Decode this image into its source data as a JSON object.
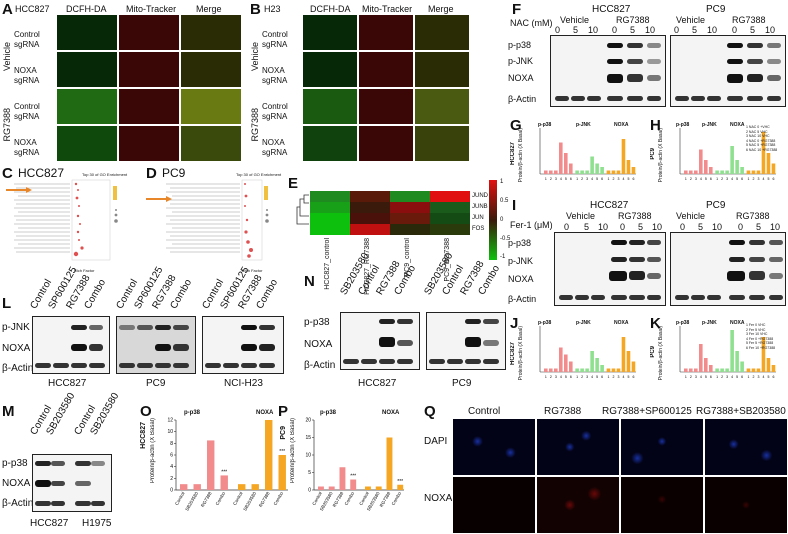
{
  "panel_letters": {
    "a": "A",
    "b": "B",
    "c": "C",
    "d": "D",
    "e": "E",
    "f": "F",
    "g": "G",
    "h": "H",
    "i": "I",
    "j": "J",
    "k": "K",
    "l": "L",
    "m": "M",
    "n": "N",
    "o": "O",
    "p": "P",
    "q": "Q"
  },
  "a": {
    "cell_line": "HCC827",
    "cols": [
      "DCFH-DA",
      "Mito-Tracker",
      "Merge"
    ],
    "treat": [
      "Vehicle",
      "RG7388"
    ],
    "rows": [
      "Control sgRNA",
      "NOXA sgRNA",
      "Control sgRNA",
      "NOXA sgRNA"
    ]
  },
  "b": {
    "cell_line": "H23",
    "cols": [
      "DCFH-DA",
      "Mito-Tracker",
      "Merge"
    ],
    "treat": [
      "Vehicle",
      "RG7388"
    ],
    "rows": [
      "Control sgRNA",
      "NOXA sgRNA",
      "Control sgRNA",
      "NOXA sgRNA"
    ]
  },
  "c": {
    "title": "HCC827",
    "go_title": "Top 30 of GO Enrichment",
    "xlab": "Rich Factor"
  },
  "d": {
    "title": "PC9",
    "go_title": "Top 30 of GO Enrichment",
    "xlab": "Rich Factor"
  },
  "e": {
    "genes": [
      "JUND",
      "JUNB",
      "JUN",
      "FOS"
    ],
    "samples": [
      "HCC827_control",
      "HCC827_RG7388",
      "PC9_control",
      "PC9_RG7388"
    ],
    "scale": [
      "1",
      "0.5",
      "0",
      "-0.5",
      "-1"
    ]
  },
  "f": {
    "treat_label": "NAC (mM)",
    "lines": [
      "HCC827",
      "PC9"
    ],
    "groups": [
      "Vehicle",
      "RG7388",
      "Vehicle",
      "RG7388"
    ],
    "doses": [
      "0",
      "5",
      "10",
      "0",
      "5",
      "10",
      "0",
      "5",
      "10",
      "0",
      "5",
      "10"
    ],
    "rows": [
      "p-p38",
      "p-JNK",
      "NOXA",
      "β-Actin"
    ]
  },
  "g": {
    "ylab": "Protein/β-actin (X Basal)",
    "cell": "HCC827",
    "groups": [
      "p-p38",
      "p-JNK",
      "NOXA"
    ],
    "ticks": [
      "1",
      "2",
      "3",
      "4",
      "5",
      "6"
    ]
  },
  "h": {
    "ylab": "Protein/β-actin (X Basal)",
    "cell": "PC9",
    "groups": [
      "p-p38",
      "p-JNK",
      "NOXA"
    ],
    "ticks": [
      "1",
      "2",
      "3",
      "4",
      "5",
      "6"
    ],
    "legend": [
      "1 NAC 0 +VHC",
      "2 NAC 5 VHC",
      "3 NAC 10 VHC",
      "4 NAC 0 +RG7388",
      "5 NAC 5 +RG7388",
      "6 NAC 10 +RG7388"
    ]
  },
  "i": {
    "treat_label": "Fer-1 (μM)",
    "lines": [
      "HCC827",
      "PC9"
    ],
    "groups": [
      "Vehicle",
      "RG7388",
      "Vehicle",
      "RG7388"
    ],
    "doses": [
      "0",
      "5",
      "10",
      "0",
      "5",
      "10",
      "0",
      "5",
      "10",
      "0",
      "5",
      "10"
    ],
    "rows": [
      "p-p38",
      "p-JNK",
      "NOXA",
      "β-Actin"
    ]
  },
  "j": {
    "ylab": "Protein/β-actin (X Basal)",
    "cell": "HCC827",
    "groups": [
      "p-p38",
      "p-JNK",
      "NOXA"
    ],
    "ticks": [
      "1",
      "2",
      "3",
      "4",
      "5",
      "6"
    ]
  },
  "k": {
    "ylab": "Protein/β-actin (X Basal)",
    "cell": "PC9",
    "groups": [
      "p-p38",
      "p-JNK",
      "NOXA"
    ],
    "ticks": [
      "1",
      "2",
      "3",
      "4",
      "5",
      "6"
    ],
    "legend": [
      "1 Fer 0 VHC",
      "2 Fer 5 VHC",
      "3 Fer 10 VHC",
      "4 Fer 0 +RG7388",
      "5 Fer 5 +RG7388",
      "6 Fer 10 +RG7388"
    ]
  },
  "l": {
    "lanes": [
      "Control",
      "SP600125",
      "RG7388",
      "Combo",
      "Control",
      "SP600125",
      "RG7388",
      "Combo",
      "Control",
      "SP600125",
      "RG7388",
      "Combo"
    ],
    "rows": [
      "p-JNK",
      "NOXA",
      "β-Actin"
    ],
    "lines": [
      "HCC827",
      "PC9",
      "NCI-H23"
    ]
  },
  "m": {
    "lanes": [
      "Control",
      "SB203580",
      "Control",
      "SB203580"
    ],
    "rows": [
      "p-p38",
      "NOXA",
      "β-Actin"
    ],
    "lines": [
      "HCC827",
      "H1975"
    ]
  },
  "n": {
    "lanes": [
      "SB203580",
      "Control",
      "RG7388",
      "Combo",
      "SB203580",
      "Control",
      "RG7388",
      "Combo"
    ],
    "rows": [
      "p-p38",
      "NOXA",
      "β-Actin"
    ],
    "lines": [
      "HCC827",
      "PC9"
    ]
  },
  "o": {
    "ylab": "Protein/β-actin (X Basal)",
    "cell": "HCC827",
    "groups": [
      "p-p38",
      "NOXA"
    ],
    "cats": [
      "Control",
      "SB203580",
      "RG7388",
      "Combo",
      "Control",
      "SB203580",
      "RG7388",
      "Combo"
    ],
    "yticks": [
      "0",
      "2",
      "4",
      "6",
      "8",
      "10",
      "12"
    ],
    "sig": "***"
  },
  "p": {
    "ylab": "Protein/β-actin (X Basal)",
    "cell": "PC9",
    "groups": [
      "p-p38",
      "NOXA"
    ],
    "cats": [
      "Control",
      "SB203580",
      "RG7388",
      "Combo",
      "Control",
      "SB203580",
      "RG7388",
      "Combo"
    ],
    "yticks": [
      "0",
      "5",
      "10",
      "15",
      "20"
    ],
    "sig": "***"
  },
  "q": {
    "cols": [
      "Control",
      "RG7388",
      "RG7388+SP600125",
      "RG7388+SB203580"
    ],
    "rows": [
      "DAPI",
      "NOXA"
    ]
  },
  "chart_data": [
    {
      "panel": "O",
      "type": "bar",
      "categories": [
        "Control",
        "SB203580",
        "RG7388",
        "Combo",
        "Control",
        "SB203580",
        "RG7388",
        "Combo"
      ],
      "values": [
        1,
        1,
        8.5,
        2.5,
        1,
        1,
        12,
        6
      ],
      "ylim": [
        0,
        12
      ],
      "colors": [
        "#f28c8c",
        "#f28c8c",
        "#f28c8c",
        "#f28c8c",
        "#f5a623",
        "#f5a623",
        "#f5a623",
        "#f5a623"
      ]
    },
    {
      "panel": "P",
      "type": "bar",
      "categories": [
        "Control",
        "SB203580",
        "RG7388",
        "Combo",
        "Control",
        "SB203580",
        "RG7388",
        "Combo"
      ],
      "values": [
        1,
        1,
        6.5,
        3,
        1,
        1,
        15,
        1.5
      ],
      "ylim": [
        0,
        20
      ],
      "colors": [
        "#f28c8c",
        "#f28c8c",
        "#f28c8c",
        "#f28c8c",
        "#f5a623",
        "#f5a623",
        "#f5a623",
        "#f5a623"
      ]
    },
    {
      "panel": "G",
      "type": "bar",
      "values": [
        1,
        1,
        1,
        9,
        6,
        3,
        1,
        1,
        1,
        5,
        3,
        2,
        1,
        1,
        1,
        10,
        4,
        2
      ]
    },
    {
      "panel": "H",
      "type": "bar",
      "values": [
        1,
        1,
        1,
        7,
        4,
        2,
        1,
        1,
        1,
        8,
        4,
        2,
        1,
        1,
        1,
        12,
        6,
        3
      ]
    },
    {
      "panel": "J",
      "type": "bar",
      "values": [
        1,
        1,
        1,
        7,
        5,
        3,
        1,
        1,
        1,
        6,
        4,
        2,
        1,
        1,
        1,
        10,
        6,
        3
      ]
    },
    {
      "panel": "K",
      "type": "bar",
      "values": [
        1,
        1,
        1,
        8,
        4,
        2,
        1,
        1,
        1,
        12,
        6,
        3,
        1,
        1,
        1,
        10,
        4,
        2
      ]
    }
  ]
}
